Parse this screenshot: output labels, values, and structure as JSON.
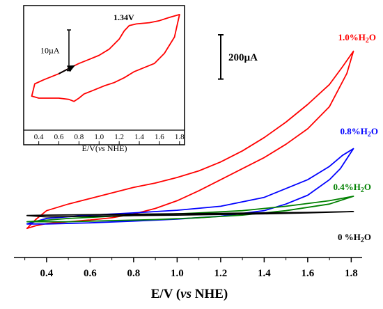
{
  "chart_data": {
    "type": "line",
    "xlabel_prefix": "E/V (",
    "xlabel_italic": "vs",
    "xlabel_suffix": " NHE)",
    "xlim": [
      0.25,
      1.85
    ],
    "x_ticks": [
      "0.4",
      "0.6",
      "0.8",
      "1.0",
      "1.2",
      "1.4",
      "1.6",
      "1.8"
    ],
    "x_tick_values": [
      0.4,
      0.6,
      0.8,
      1.0,
      1.2,
      1.4,
      1.6,
      1.8
    ],
    "y_units": "µA",
    "ylim": [
      -100,
      1000
    ],
    "scale_bar": {
      "label": "200µA",
      "value": 200
    },
    "series": [
      {
        "name": "1.0%H2O",
        "color": "#ff0000",
        "forward": [
          [
            0.31,
            0
          ],
          [
            0.35,
            40
          ],
          [
            0.4,
            80
          ],
          [
            0.5,
            110
          ],
          [
            0.6,
            135
          ],
          [
            0.7,
            160
          ],
          [
            0.8,
            185
          ],
          [
            0.9,
            205
          ],
          [
            1.0,
            230
          ],
          [
            1.1,
            260
          ],
          [
            1.2,
            300
          ],
          [
            1.3,
            350
          ],
          [
            1.4,
            410
          ],
          [
            1.5,
            480
          ],
          [
            1.6,
            560
          ],
          [
            1.7,
            650
          ],
          [
            1.76,
            730
          ],
          [
            1.81,
            800
          ]
        ],
        "reverse": [
          [
            1.81,
            800
          ],
          [
            1.78,
            700
          ],
          [
            1.7,
            550
          ],
          [
            1.6,
            450
          ],
          [
            1.5,
            380
          ],
          [
            1.4,
            320
          ],
          [
            1.3,
            270
          ],
          [
            1.2,
            220
          ],
          [
            1.1,
            170
          ],
          [
            1.0,
            125
          ],
          [
            0.9,
            90
          ],
          [
            0.8,
            65
          ],
          [
            0.7,
            48
          ],
          [
            0.6,
            38
          ],
          [
            0.5,
            30
          ],
          [
            0.4,
            22
          ],
          [
            0.35,
            12
          ],
          [
            0.31,
            0
          ]
        ]
      },
      {
        "name": "0.8%H2O",
        "color": "#0000ff",
        "forward": [
          [
            0.31,
            20
          ],
          [
            0.4,
            45
          ],
          [
            0.6,
            60
          ],
          [
            0.8,
            70
          ],
          [
            1.0,
            82
          ],
          [
            1.2,
            100
          ],
          [
            1.4,
            140
          ],
          [
            1.6,
            220
          ],
          [
            1.7,
            280
          ],
          [
            1.76,
            330
          ],
          [
            1.81,
            360
          ]
        ],
        "reverse": [
          [
            1.81,
            360
          ],
          [
            1.75,
            270
          ],
          [
            1.7,
            220
          ],
          [
            1.6,
            150
          ],
          [
            1.5,
            110
          ],
          [
            1.4,
            80
          ],
          [
            1.2,
            55
          ],
          [
            1.0,
            42
          ],
          [
            0.8,
            33
          ],
          [
            0.6,
            25
          ],
          [
            0.4,
            20
          ],
          [
            0.31,
            20
          ]
        ]
      },
      {
        "name": "0.4%H2O",
        "color": "#008000",
        "forward": [
          [
            0.31,
            30
          ],
          [
            0.5,
            45
          ],
          [
            0.7,
            55
          ],
          [
            0.9,
            62
          ],
          [
            1.1,
            70
          ],
          [
            1.3,
            80
          ],
          [
            1.5,
            100
          ],
          [
            1.7,
            125
          ],
          [
            1.81,
            145
          ]
        ],
        "reverse": [
          [
            1.81,
            145
          ],
          [
            1.7,
            110
          ],
          [
            1.5,
            80
          ],
          [
            1.3,
            60
          ],
          [
            1.1,
            48
          ],
          [
            0.9,
            40
          ],
          [
            0.7,
            35
          ],
          [
            0.5,
            30
          ],
          [
            0.31,
            30
          ]
        ]
      },
      {
        "name": "0 %H2O",
        "color": "#000000",
        "forward": [
          [
            0.31,
            58
          ],
          [
            0.4,
            60
          ],
          [
            0.6,
            62
          ],
          [
            0.8,
            64
          ],
          [
            1.0,
            66
          ],
          [
            1.2,
            68
          ],
          [
            1.4,
            70
          ],
          [
            1.6,
            72
          ],
          [
            1.81,
            76
          ]
        ],
        "reverse": [
          [
            1.81,
            76
          ],
          [
            1.6,
            70
          ],
          [
            1.4,
            66
          ],
          [
            1.2,
            63
          ],
          [
            1.0,
            60
          ],
          [
            0.8,
            58
          ],
          [
            0.6,
            55
          ],
          [
            0.4,
            52
          ],
          [
            0.31,
            58
          ]
        ]
      }
    ],
    "series_labels": [
      {
        "text": "1.0%H",
        "sub": "2",
        "tail": "O",
        "color": "#ff0000"
      },
      {
        "text": "0.8%H",
        "sub": "2",
        "tail": "O",
        "color": "#0000ff"
      },
      {
        "text": "0.4%H",
        "sub": "2",
        "tail": "O",
        "color": "#008000"
      },
      {
        "text": "0 %H",
        "sub": "2",
        "tail": "O",
        "color": "#000000"
      }
    ],
    "inset": {
      "xlabel_prefix": "E/V(",
      "xlabel_italic": "vs",
      "xlabel_suffix": " NHE)",
      "xlim": [
        0.25,
        1.85
      ],
      "x_ticks": [
        "0.4",
        "0.6",
        "0.8",
        "1.0",
        "1.2",
        "1.4",
        "1.6",
        "1.8"
      ],
      "x_tick_values": [
        0.4,
        0.6,
        0.8,
        1.0,
        1.2,
        1.4,
        1.6,
        1.8
      ],
      "ylim": [
        -12,
        16
      ],
      "scale_bar": {
        "label": "10µA",
        "value": 10
      },
      "peak_label": "1.34V",
      "color": "#ff0000",
      "curve": [
        [
          0.4,
          -5
        ],
        [
          0.33,
          -4.5
        ],
        [
          0.36,
          -1.5
        ],
        [
          0.45,
          -0.5
        ],
        [
          0.6,
          1
        ],
        [
          0.7,
          2.3
        ],
        [
          0.8,
          3.5
        ],
        [
          0.9,
          4.5
        ],
        [
          1.0,
          5.5
        ],
        [
          1.1,
          7
        ],
        [
          1.2,
          9.5
        ],
        [
          1.25,
          11.5
        ],
        [
          1.3,
          12.8
        ],
        [
          1.37,
          13.2
        ],
        [
          1.5,
          13.5
        ],
        [
          1.6,
          14
        ],
        [
          1.7,
          14.8
        ],
        [
          1.8,
          15.5
        ],
        [
          1.8,
          15.5
        ],
        [
          1.75,
          10
        ],
        [
          1.65,
          6
        ],
        [
          1.55,
          3.5
        ],
        [
          1.45,
          2.5
        ],
        [
          1.35,
          1.5
        ],
        [
          1.25,
          0
        ],
        [
          1.15,
          -1.2
        ],
        [
          1.05,
          -2
        ],
        [
          0.95,
          -3
        ],
        [
          0.85,
          -4
        ],
        [
          0.8,
          -5
        ],
        [
          0.75,
          -5.8
        ],
        [
          0.7,
          -5.3
        ],
        [
          0.6,
          -5
        ],
        [
          0.4,
          -5
        ]
      ],
      "arrow": {
        "from": [
          0.6,
          1
        ],
        "to": [
          0.75,
          2.9
        ]
      }
    }
  }
}
